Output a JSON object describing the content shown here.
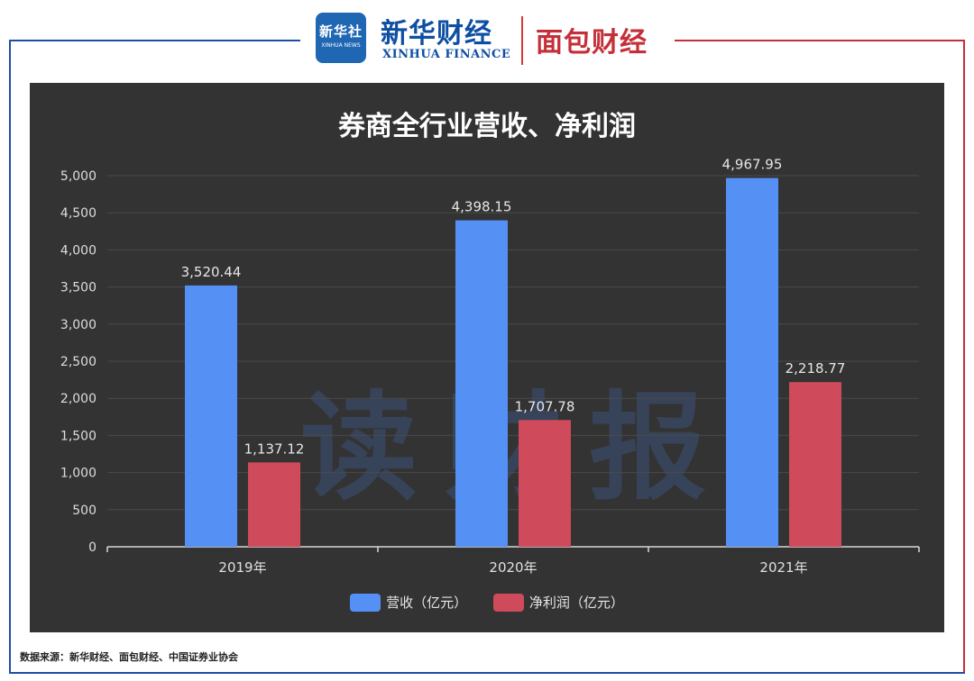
{
  "header": {
    "xinhua_badge_big": "新华社",
    "xinhua_badge_small": "XINHUA NEWS",
    "xinhua_finance_cn": "新华财经",
    "xinhua_finance_en": "XINHUA FINANCE",
    "mianbao_cn": "面包财经"
  },
  "colors": {
    "revenue": "#5591f5",
    "profit": "#cf4a5a",
    "panel_bg": "#333333",
    "left_frame": "#1f4fa3",
    "right_frame": "#c4303a"
  },
  "watermark": "读财报",
  "footnote": "数据来源：新华财经、面包财经、中国证券业协会",
  "chart_data": {
    "type": "bar",
    "title": "券商全行业营收、净利润",
    "categories": [
      "2019年",
      "2020年",
      "2021年"
    ],
    "series": [
      {
        "name": "营收（亿元）",
        "values": [
          3520.44,
          4398.15,
          4967.95
        ],
        "labels": [
          "3,520.44",
          "4,398.15",
          "4,967.95"
        ]
      },
      {
        "name": "净利润（亿元）",
        "values": [
          1137.12,
          1707.78,
          2218.77
        ],
        "labels": [
          "1,137.12",
          "1,707.78",
          "2,218.77"
        ]
      }
    ],
    "ylim": [
      0,
      5000
    ],
    "yticks": [
      0,
      500,
      1000,
      1500,
      2000,
      2500,
      3000,
      3500,
      4000,
      4500,
      5000
    ],
    "ytick_labels": [
      "0",
      "500",
      "1,000",
      "1,500",
      "2,000",
      "2,500",
      "3,000",
      "3,500",
      "4,000",
      "4,500",
      "5,000"
    ],
    "grid": true,
    "legend": "bottom-center"
  }
}
